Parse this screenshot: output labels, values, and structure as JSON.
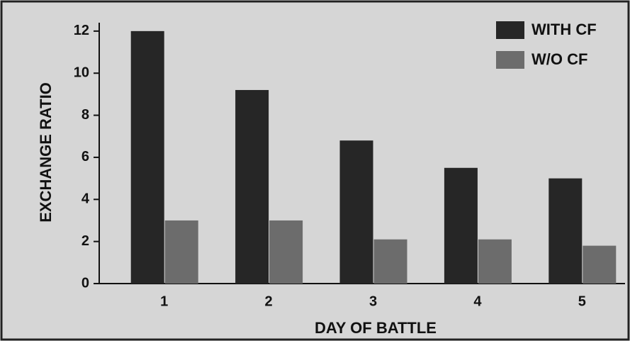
{
  "chart_data": {
    "type": "bar",
    "categories": [
      "1",
      "2",
      "3",
      "4",
      "5"
    ],
    "series": [
      {
        "name": "WITH CF",
        "color": "#262626",
        "values": [
          12.0,
          9.2,
          6.8,
          5.5,
          5.0
        ]
      },
      {
        "name": "W/O CF",
        "color": "#6c6c6c",
        "values": [
          3.0,
          3.0,
          2.1,
          2.1,
          1.8
        ]
      }
    ],
    "xlabel": "DAY OF BATTLE",
    "ylabel": "EXCHANGE RATIO",
    "ylim": [
      0,
      12.4
    ],
    "yticks": [
      0,
      2,
      4,
      6,
      8,
      10,
      12
    ],
    "legend": "top-right"
  }
}
